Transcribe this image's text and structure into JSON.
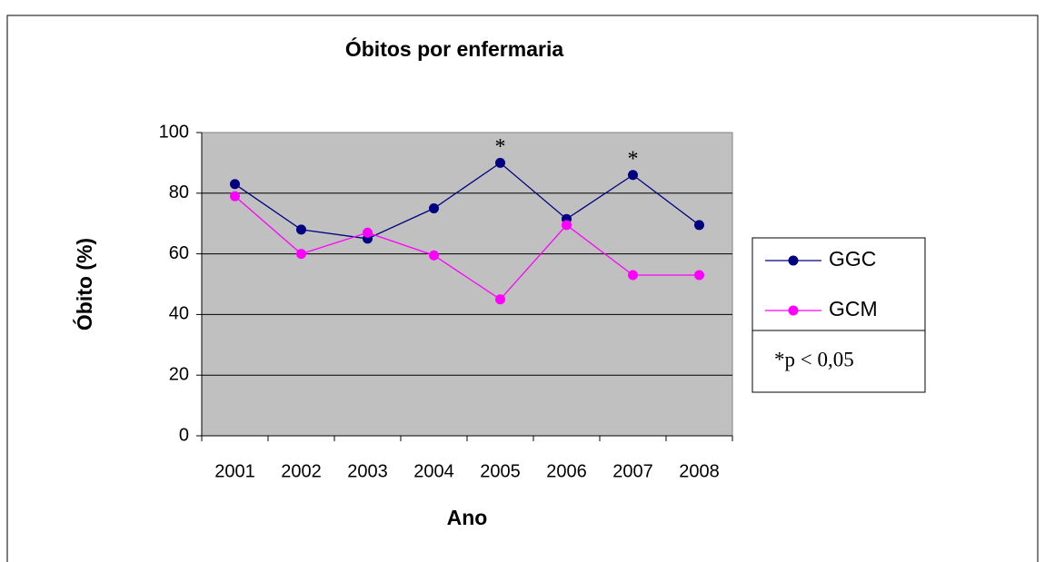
{
  "chart_data": {
    "type": "line",
    "title": "Óbitos por enfermaria",
    "x_label": "Ano",
    "y_label": "Óbito (%)",
    "categories": [
      "2001",
      "2002",
      "2003",
      "2004",
      "2005",
      "2006",
      "2007",
      "2008"
    ],
    "series": [
      {
        "name": "GGC",
        "color": "#000080",
        "values": [
          83,
          68,
          65,
          75,
          90,
          71.5,
          86,
          69.5
        ]
      },
      {
        "name": "GCM",
        "color": "#ff00ff",
        "values": [
          79,
          60,
          67,
          59.5,
          45,
          69.5,
          53,
          53
        ]
      }
    ],
    "annotations": [
      {
        "text": "*",
        "category": "2005"
      },
      {
        "text": "*",
        "category": "2007"
      }
    ],
    "footnote": "*p < 0,05",
    "ylim": [
      0,
      100
    ],
    "yticks": [
      0,
      20,
      40,
      60,
      80,
      100
    ],
    "grid": true,
    "legend": "right"
  }
}
